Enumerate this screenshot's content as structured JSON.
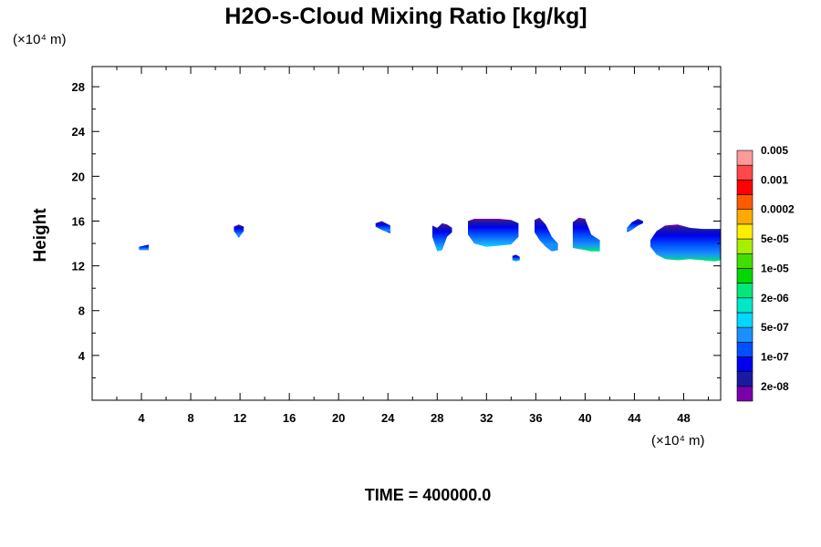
{
  "chart_data": {
    "type": "heatmap",
    "title": "H2O-s-Cloud Mixing Ratio [kg/kg]",
    "ylabel": "Height",
    "xlabel": "",
    "x_unit_label": "(×10⁴ m)",
    "y_unit_label": "(×10⁴ m)",
    "x_range": [
      0,
      51
    ],
    "y_range": [
      0,
      29.8
    ],
    "x_ticks": [
      4,
      8,
      12,
      16,
      20,
      24,
      28,
      32,
      36,
      40,
      44,
      48
    ],
    "y_ticks": [
      4,
      8,
      12,
      16,
      20,
      24,
      28
    ],
    "time_label": "TIME = 400000.0",
    "colorbar": {
      "colors": [
        "#7a00aa",
        "#1a1aa0",
        "#0000ee",
        "#0050ff",
        "#1a90ff",
        "#00d8ff",
        "#00e8c8",
        "#00e87a",
        "#00d800",
        "#44dd00",
        "#a8ee00",
        "#ffee00",
        "#ffaa00",
        "#ff5a00",
        "#ff0000",
        "#ff4848",
        "#ff9a9a"
      ],
      "labels": [
        "2e-08",
        "1e-07",
        "5e-07",
        "2e-06",
        "1e-05",
        "5e-05",
        "0.0002",
        "0.001",
        "0.005"
      ]
    },
    "clouds": [
      {
        "x": [
          3.8,
          4.6
        ],
        "y_top": [
          13.7,
          13.9
        ],
        "y_bottom": [
          13.4,
          13.4
        ],
        "bottom_color": "#1a90ff"
      },
      {
        "x": [
          11.5,
          11.9,
          12.3
        ],
        "y_top": [
          15.5,
          15.7,
          15.5
        ],
        "y_bottom": [
          15.1,
          14.5,
          15.1
        ],
        "bottom_color": "#0050ff"
      },
      {
        "x": [
          23.0,
          23.5,
          24.2
        ],
        "y_top": [
          15.8,
          16.0,
          15.6
        ],
        "y_bottom": [
          15.5,
          15.2,
          14.9
        ],
        "bottom_color": "#0000ee"
      },
      {
        "x": [
          27.6,
          28.0,
          28.4,
          28.8,
          29.2
        ],
        "y_top": [
          15.6,
          15.4,
          15.8,
          15.7,
          15.4
        ],
        "y_bottom": [
          14.6,
          13.3,
          13.4,
          14.6,
          15.0
        ],
        "bottom_color": "#00d8ff"
      },
      {
        "x": [
          30.5,
          31.0,
          32.0,
          33.0,
          34.0,
          34.6
        ],
        "y_top": [
          16.0,
          16.2,
          16.2,
          16.2,
          16.1,
          15.8
        ],
        "y_bottom": [
          14.8,
          14.0,
          13.7,
          13.8,
          13.9,
          14.6
        ],
        "bottom_color": "#00d8ff"
      },
      {
        "x": [
          34.1,
          34.4,
          34.7
        ],
        "y_top": [
          12.9,
          13.0,
          12.8
        ],
        "y_bottom": [
          12.5,
          12.4,
          12.5
        ],
        "bottom_color": "#00e87a"
      },
      {
        "x": [
          35.9,
          36.3,
          36.8,
          37.3,
          37.8
        ],
        "y_top": [
          16.1,
          16.3,
          15.7,
          14.6,
          14.0
        ],
        "y_bottom": [
          15.0,
          14.3,
          13.7,
          13.3,
          13.4
        ],
        "bottom_color": "#1a90ff"
      },
      {
        "x": [
          39.0,
          39.5,
          40.0,
          40.5,
          41.2
        ],
        "y_top": [
          15.9,
          16.3,
          16.2,
          14.8,
          14.3
        ],
        "y_bottom": [
          13.6,
          13.5,
          13.4,
          13.3,
          13.3
        ],
        "bottom_color": "#00e87a"
      },
      {
        "x": [
          43.4,
          43.8,
          44.3,
          44.7
        ],
        "y_top": [
          15.4,
          15.9,
          16.2,
          16.0
        ],
        "y_bottom": [
          15.0,
          15.2,
          15.6,
          15.8
        ],
        "bottom_color": "#0000ee"
      },
      {
        "x": [
          45.3,
          45.8,
          46.5,
          47.5,
          48.5,
          49.5,
          50.5,
          51.0
        ],
        "y_top": [
          14.3,
          15.1,
          15.6,
          15.7,
          15.4,
          15.3,
          15.3,
          15.3
        ],
        "y_bottom": [
          13.7,
          13.0,
          12.6,
          12.5,
          12.6,
          12.5,
          12.4,
          12.5
        ],
        "bottom_color": "#00e87a"
      }
    ]
  }
}
